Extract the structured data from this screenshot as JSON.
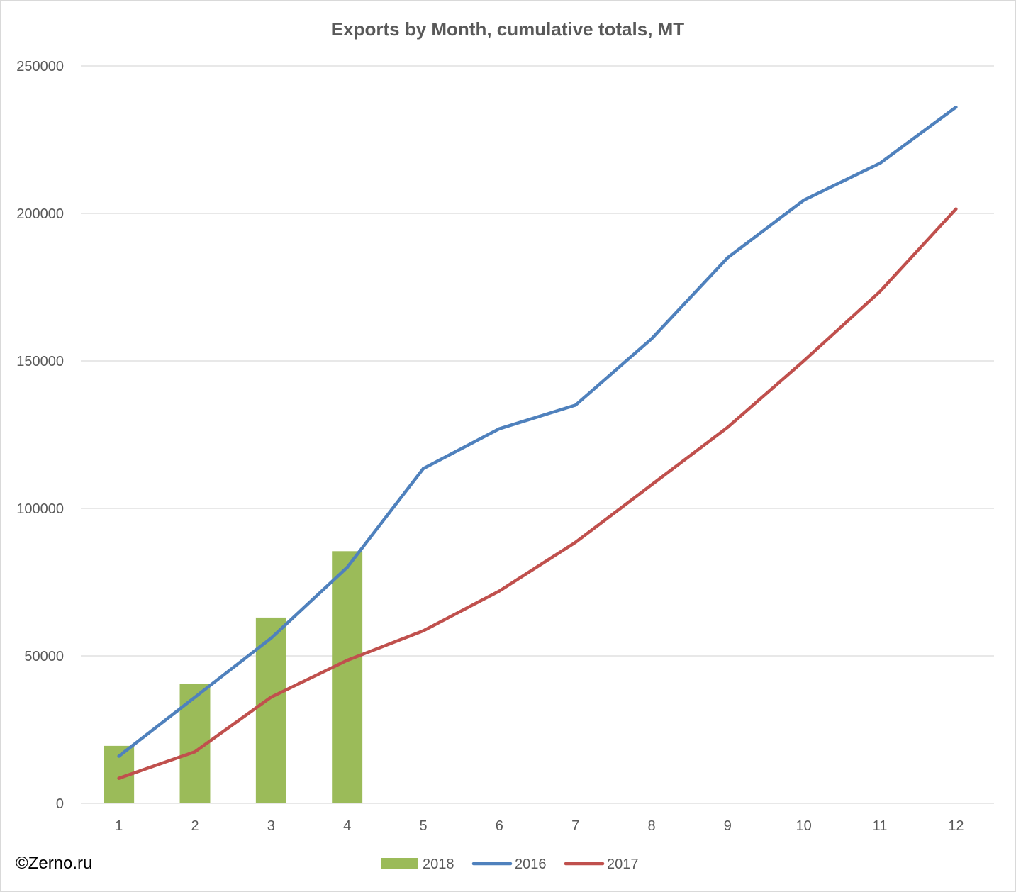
{
  "chart_data": {
    "type": "bar+line",
    "title": "Exports by Month, cumulative totals, MT",
    "categories": [
      "1",
      "2",
      "3",
      "4",
      "5",
      "6",
      "7",
      "8",
      "9",
      "10",
      "11",
      "12"
    ],
    "ylim": [
      0,
      250000
    ],
    "yticks": [
      0,
      50000,
      100000,
      150000,
      200000,
      250000
    ],
    "ytick_labels": [
      "0",
      "50000",
      "100000",
      "150000",
      "200000",
      "250000"
    ],
    "grid": true,
    "legend_position": "bottom",
    "series": [
      {
        "name": "2018",
        "kind": "bar",
        "color": "#9bbb59",
        "values": [
          19500,
          40500,
          63000,
          85500,
          null,
          null,
          null,
          null,
          null,
          null,
          null,
          null
        ]
      },
      {
        "name": "2016",
        "kind": "line",
        "color": "#4f81bd",
        "values": [
          16000,
          36000,
          56000,
          80000,
          113500,
          127000,
          135000,
          157500,
          185000,
          204500,
          217000,
          236000
        ]
      },
      {
        "name": "2017",
        "kind": "line",
        "color": "#c0504d",
        "values": [
          8500,
          17500,
          36000,
          48500,
          58500,
          72000,
          88500,
          108000,
          127500,
          150000,
          173500,
          201500
        ]
      }
    ]
  },
  "watermark": "©Zerno.ru"
}
